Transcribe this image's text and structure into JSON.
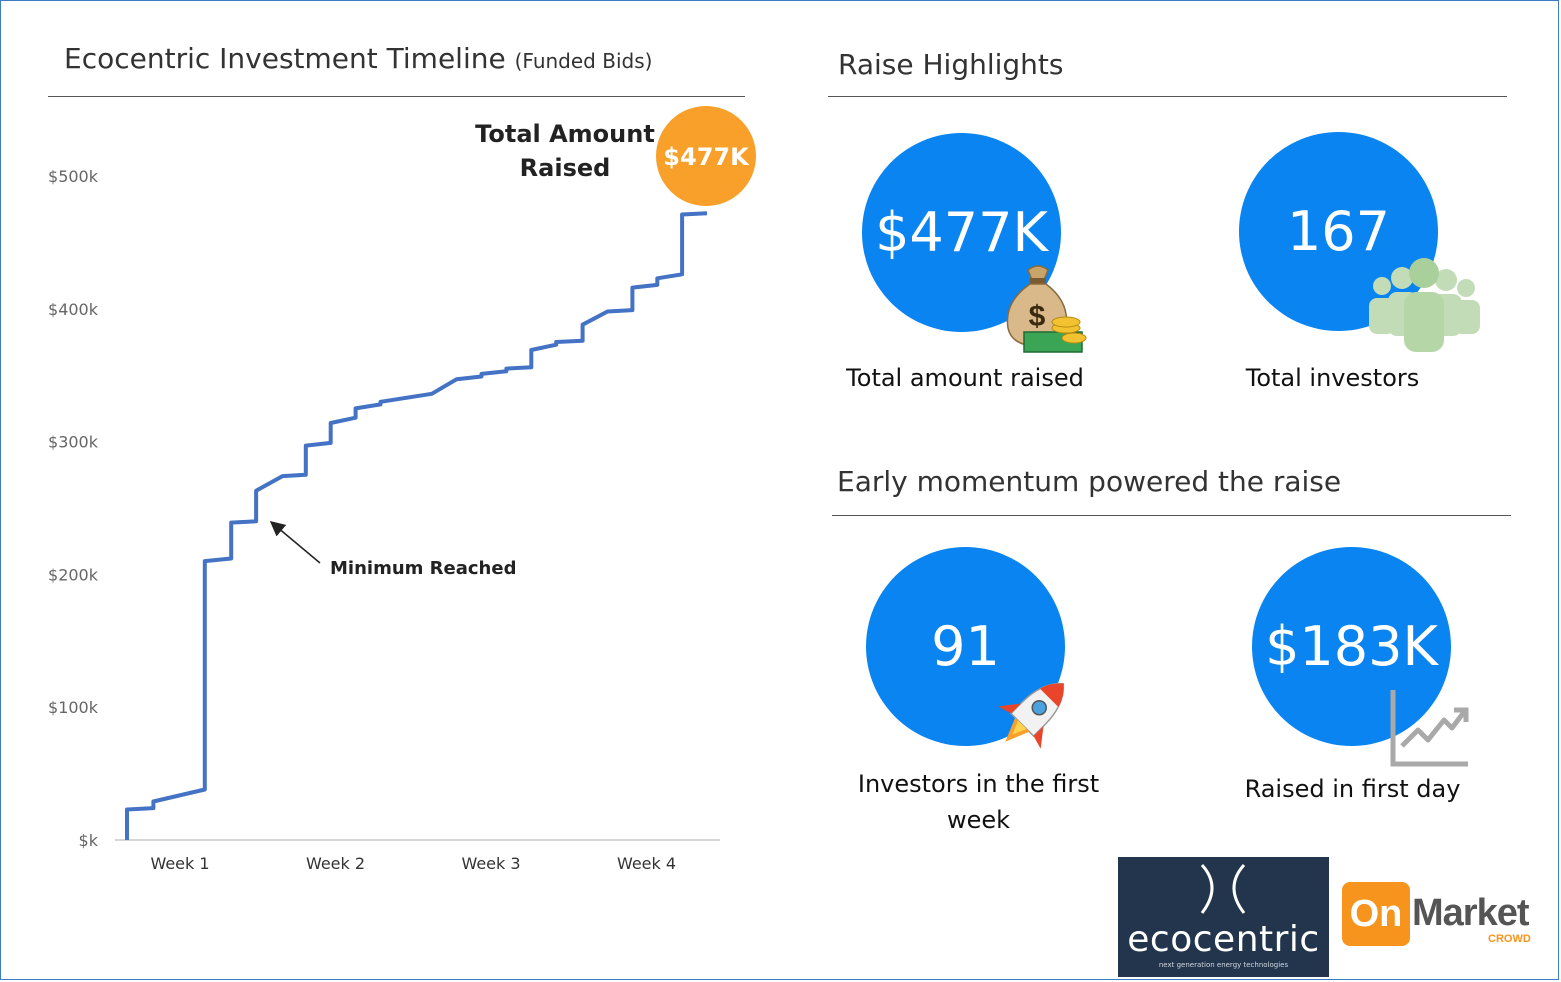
{
  "left_panel": {
    "title": "Ecocentric Investment Timeline",
    "title_sub": "(Funded Bids)"
  },
  "chart_data": {
    "type": "line",
    "title": "Ecocentric Investment Timeline (Funded Bids)",
    "xlabel": "",
    "ylabel": "",
    "x_ticks": [
      "Week 1",
      "Week 2",
      "Week 3",
      "Week 4"
    ],
    "y_ticks": [
      "$k",
      "$100k",
      "$200k",
      "$300k",
      "$400k",
      "$500k"
    ],
    "ylim": [
      0,
      500
    ],
    "xlim": [
      0,
      3.85
    ],
    "line_color": "#4472c4",
    "grid": false,
    "series": [
      {
        "values_unit": "thousands of dollars",
        "points": [
          {
            "x": 0.0,
            "y": 0
          },
          {
            "x": 0.0,
            "y": 23
          },
          {
            "x": 0.17,
            "y": 24
          },
          {
            "x": 0.17,
            "y": 29
          },
          {
            "x": 0.5,
            "y": 38
          },
          {
            "x": 0.5,
            "y": 210
          },
          {
            "x": 0.67,
            "y": 212
          },
          {
            "x": 0.67,
            "y": 239
          },
          {
            "x": 0.83,
            "y": 240
          },
          {
            "x": 0.83,
            "y": 263
          },
          {
            "x": 1.0,
            "y": 274
          },
          {
            "x": 1.15,
            "y": 275
          },
          {
            "x": 1.15,
            "y": 297
          },
          {
            "x": 1.31,
            "y": 299
          },
          {
            "x": 1.31,
            "y": 314
          },
          {
            "x": 1.47,
            "y": 318
          },
          {
            "x": 1.47,
            "y": 325
          },
          {
            "x": 1.63,
            "y": 328
          },
          {
            "x": 1.63,
            "y": 330
          },
          {
            "x": 1.96,
            "y": 336
          },
          {
            "x": 2.12,
            "y": 347
          },
          {
            "x": 2.28,
            "y": 349
          },
          {
            "x": 2.28,
            "y": 351
          },
          {
            "x": 2.44,
            "y": 353
          },
          {
            "x": 2.44,
            "y": 355
          },
          {
            "x": 2.6,
            "y": 356
          },
          {
            "x": 2.6,
            "y": 369
          },
          {
            "x": 2.76,
            "y": 373
          },
          {
            "x": 2.76,
            "y": 375
          },
          {
            "x": 2.93,
            "y": 376
          },
          {
            "x": 2.93,
            "y": 388
          },
          {
            "x": 3.09,
            "y": 398
          },
          {
            "x": 3.25,
            "y": 399
          },
          {
            "x": 3.25,
            "y": 416
          },
          {
            "x": 3.41,
            "y": 418
          },
          {
            "x": 3.41,
            "y": 423
          },
          {
            "x": 3.57,
            "y": 426
          },
          {
            "x": 3.57,
            "y": 471
          },
          {
            "x": 3.73,
            "y": 472
          }
        ]
      }
    ],
    "annotations": [
      {
        "text": "Minimum Reached",
        "x": 0.83,
        "y": 240
      },
      {
        "text": "Total Amount Raised",
        "badge": "$477K",
        "badge_color": "#f9a02b"
      }
    ]
  },
  "right_panel": {
    "highlights_title": "Raise Highlights",
    "momentum_title": "Early momentum powered the raise",
    "stats": [
      {
        "value": "$477K",
        "label": "Total amount raised",
        "icon": "money-bag-icon"
      },
      {
        "value": "167",
        "label": "Total investors",
        "icon": "people-group-icon"
      },
      {
        "value": "91",
        "label": "Investors in the first week",
        "icon": "rocket-icon"
      },
      {
        "value": "$183K",
        "label": "Raised in first day",
        "icon": "growth-chart-icon"
      }
    ]
  },
  "logos": {
    "ecocentric": {
      "name": "ecocentric",
      "tagline": "next generation energy technologies",
      "bg": "#22354d"
    },
    "onmarket": {
      "on": "On",
      "market": "Market",
      "crowd": "CROWD",
      "color": "#f7941d"
    }
  },
  "colors": {
    "circle_blue": "#0a84f0",
    "badge_orange": "#f9a02b",
    "line_blue": "#4472c4"
  }
}
